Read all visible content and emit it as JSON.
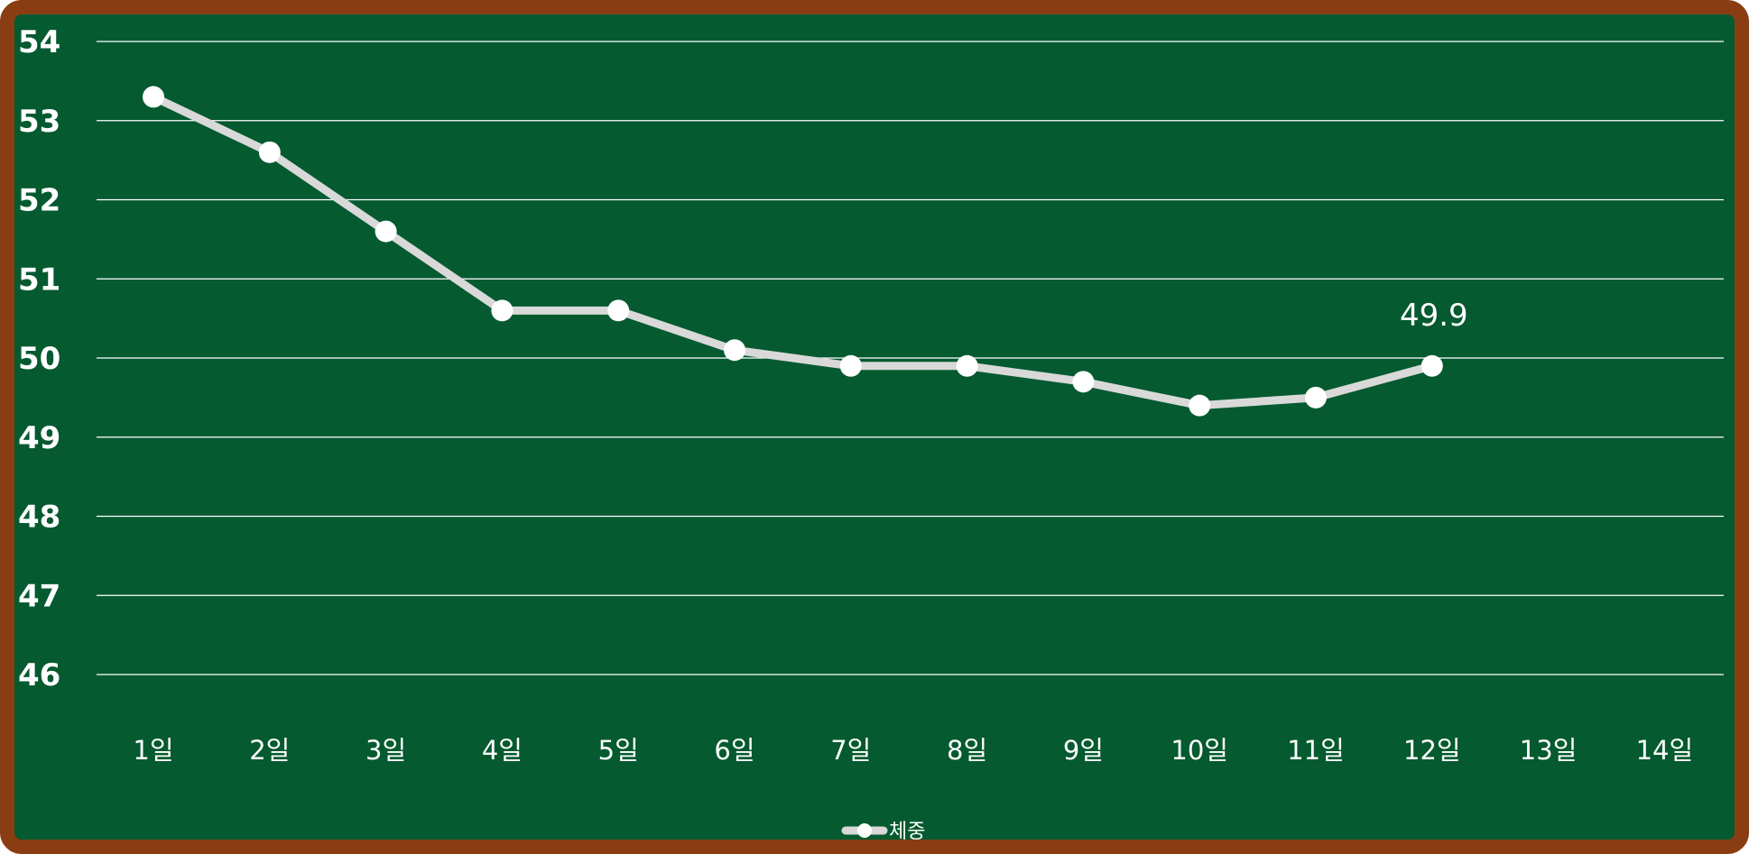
{
  "chart_data": {
    "type": "line",
    "categories": [
      "1일",
      "2일",
      "3일",
      "4일",
      "5일",
      "6일",
      "7일",
      "8일",
      "9일",
      "10일",
      "11일",
      "12일",
      "13일",
      "14일"
    ],
    "series": [
      {
        "name": "체중",
        "values": [
          53.3,
          52.6,
          51.6,
          50.6,
          50.6,
          50.1,
          49.9,
          49.9,
          49.7,
          49.4,
          49.5,
          49.9,
          null,
          null
        ]
      }
    ],
    "data_labels": [
      {
        "index": 11,
        "text": "49.9"
      }
    ],
    "yticks": [
      "46",
      "47",
      "48",
      "49",
      "50",
      "51",
      "52",
      "53",
      "54"
    ],
    "ylim": [
      46,
      54
    ],
    "grid": "horizontal",
    "legend_position": "bottom",
    "colors": {
      "background": "#055a30",
      "frame": "#8a3d13",
      "line": "#d9d9d9",
      "marker": "#ffffff",
      "text": "#ffffff",
      "grid": "#ffffff"
    }
  }
}
